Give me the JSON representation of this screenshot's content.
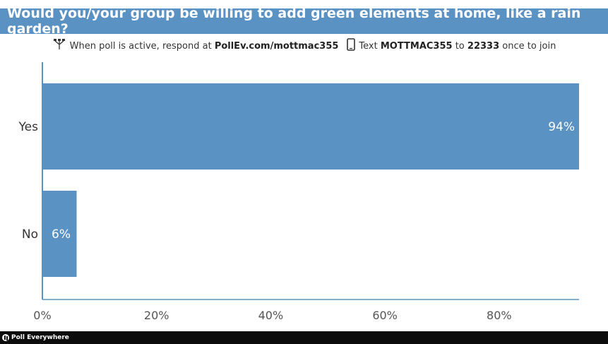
{
  "title": "Would you/your group be willing to add green elements at home, like a rain garden?",
  "instructions": {
    "web_prefix": "When poll is active, respond at",
    "web_url": "PollEv.com/mottmac355",
    "text_prefix": "Text",
    "text_code": "MOTTMAC355",
    "text_to": "to",
    "text_number": "22333",
    "text_suffix": "once to join"
  },
  "chart_data": {
    "type": "bar",
    "orientation": "horizontal",
    "categories": [
      "Yes",
      "No"
    ],
    "values": [
      94,
      6
    ],
    "value_labels": [
      "94%",
      "6%"
    ],
    "xlim": [
      0,
      94
    ],
    "xticks": [
      0,
      20,
      40,
      60,
      80
    ],
    "xtick_labels": [
      "0%",
      "20%",
      "40%",
      "60%",
      "80%"
    ],
    "bar_color": "#5b92c4",
    "grid": false
  },
  "footer": {
    "brand": "Poll Everywhere"
  },
  "colors": {
    "title_bar": "#5b92c4",
    "footer": "#0c0c0c"
  }
}
